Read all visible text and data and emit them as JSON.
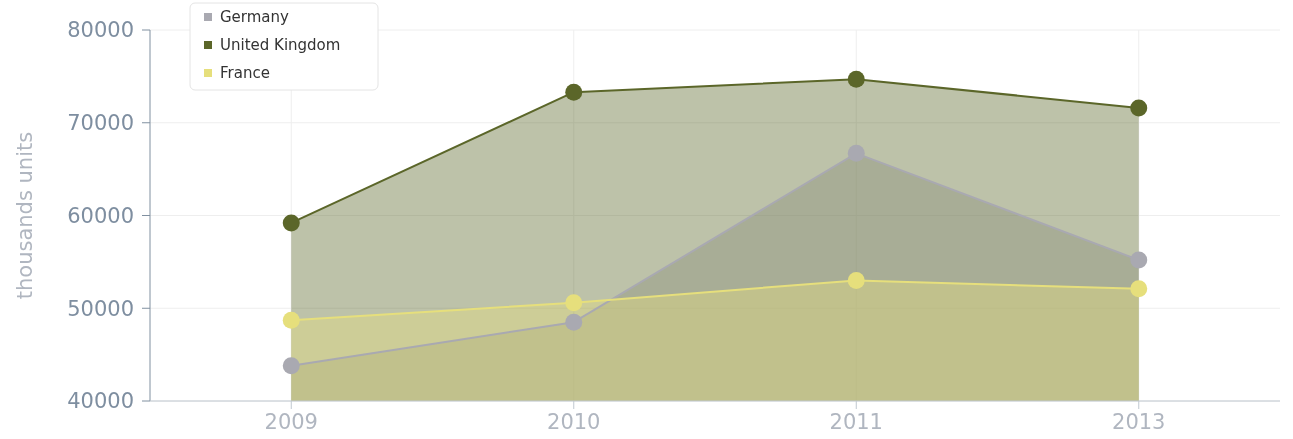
{
  "chart_data": {
    "type": "area",
    "ylabel": "thousands units",
    "categories": [
      "2009",
      "2010",
      "2011",
      "2013"
    ],
    "ylim": [
      40000,
      80000
    ],
    "yticks": [
      40000,
      50000,
      60000,
      70000,
      80000
    ],
    "grid": true,
    "legend": "top left",
    "marker": "circle",
    "series": [
      {
        "name": "Germany",
        "color": "#a9a9b1",
        "values": [
          43800,
          48500,
          66700,
          55200
        ]
      },
      {
        "name": "United Kingdom",
        "color": "#5b6629",
        "values": [
          59200,
          73300,
          74700,
          71600
        ]
      },
      {
        "name": "France",
        "color": "#e6df7c",
        "values": [
          48700,
          50600,
          53000,
          52100
        ]
      }
    ]
  }
}
